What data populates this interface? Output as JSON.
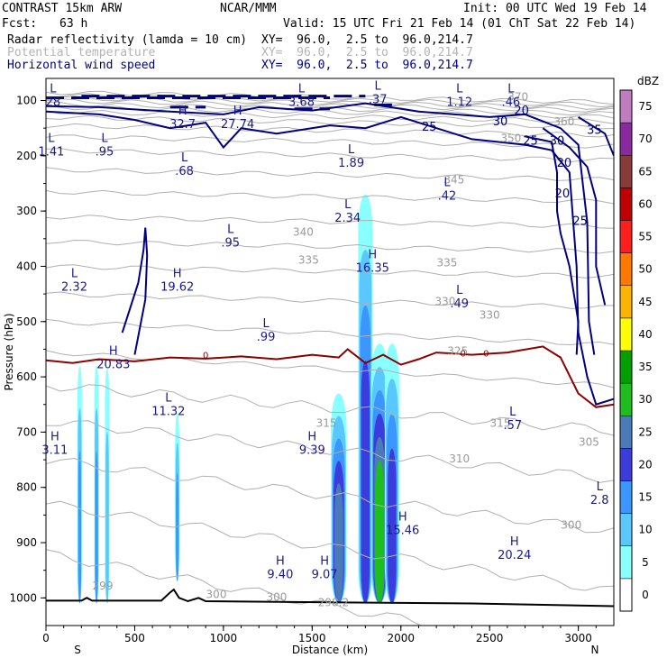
{
  "header": {
    "title_left": "CONTRAST 15km ARW",
    "org": "NCAR/MMM",
    "init": "Init: 00 UTC Wed 19 Feb 14",
    "fcst_label": "Fcst:",
    "fcst_value": "63 h",
    "valid": "Valid: 15 UTC Fri 21 Feb 14 (01 ChT Sat 22 Feb 14)",
    "fields": [
      {
        "name": "Radar reflectivity (lamda = 10 cm)",
        "xy": "XY=  96.0,  2.5 to  96.0,214.7",
        "color": "#000000"
      },
      {
        "name": "Potential temperature",
        "xy": "XY=  96.0,  2.5 to  96.0,214.7",
        "color": "#b4b4b4"
      },
      {
        "name": "Horizontal wind speed",
        "xy": "XY=  96.0,  2.5 to  96.0,214.7",
        "color": "#000080"
      }
    ]
  },
  "chart_data": {
    "type": "cross-section",
    "xlabel": "Distance (km)",
    "ylabel": "Pressure (hPa)",
    "xlim": [
      0,
      3200
    ],
    "ylim": [
      1050,
      60
    ],
    "x_ticks": [
      0,
      500,
      1000,
      1500,
      2000,
      2500,
      3000
    ],
    "y_ticks": [
      100,
      200,
      300,
      400,
      500,
      600,
      700,
      800,
      900,
      1000
    ],
    "x_end_labels": {
      "left": "S",
      "right": "N"
    },
    "colorbar": {
      "unit": "dBZ",
      "levels": [
        "0",
        "5",
        "10",
        "15",
        "20",
        "25",
        "30",
        "35",
        "40",
        "45",
        "50",
        "55",
        "60",
        "65",
        "70",
        "75"
      ],
      "colors": [
        "#ffffff",
        "#8affff",
        "#5ac8ff",
        "#3c96ff",
        "#3c3cdc",
        "#4a7ab8",
        "#1ebe1e",
        "#00a000",
        "#ffff00",
        "#ffb400",
        "#ff7800",
        "#ff1e1e",
        "#c00000",
        "#8b3a3a",
        "#8a2aa0",
        "#c07cc0"
      ]
    },
    "reflectivity_cells": [
      {
        "x": 190,
        "p_top": 580,
        "p_bot": 1000,
        "max_level": 3
      },
      {
        "x": 285,
        "p_top": 580,
        "p_bot": 1000,
        "max_level": 3
      },
      {
        "x": 345,
        "p_top": 585,
        "p_bot": 1000,
        "max_level": 2
      },
      {
        "x": 740,
        "p_top": 665,
        "p_bot": 960,
        "max_level": 3
      },
      {
        "x": 1650,
        "p_top": 630,
        "p_bot": 1000,
        "max_level": 5
      },
      {
        "x": 1800,
        "p_top": 270,
        "p_bot": 1000,
        "max_level": 4
      },
      {
        "x": 1880,
        "p_top": 540,
        "p_bot": 1000,
        "max_level": 6
      },
      {
        "x": 1950,
        "p_top": 540,
        "p_bot": 1000,
        "max_level": 4
      }
    ],
    "theta_labels": [
      {
        "text": "370",
        "x": 2660,
        "p": 100
      },
      {
        "text": "360",
        "x": 2920,
        "p": 145
      },
      {
        "text": "350",
        "x": 2620,
        "p": 175
      },
      {
        "text": "345",
        "x": 2300,
        "p": 250
      },
      {
        "text": "340",
        "x": 1450,
        "p": 345
      },
      {
        "text": "335",
        "x": 1480,
        "p": 395
      },
      {
        "text": "335",
        "x": 2260,
        "p": 400
      },
      {
        "text": "330",
        "x": 2250,
        "p": 470
      },
      {
        "text": "330",
        "x": 2500,
        "p": 495
      },
      {
        "text": "325",
        "x": 2320,
        "p": 560
      },
      {
        "text": "315",
        "x": 1580,
        "p": 690
      },
      {
        "text": "315",
        "x": 2560,
        "p": 690
      },
      {
        "text": "310",
        "x": 2330,
        "p": 755
      },
      {
        "text": "305",
        "x": 3060,
        "p": 725
      },
      {
        "text": "300",
        "x": 2960,
        "p": 875
      },
      {
        "text": "300",
        "x": 1300,
        "p": 1005
      },
      {
        "text": "300",
        "x": 960,
        "p": 1000
      },
      {
        "text": "299",
        "x": 320,
        "p": 985
      },
      {
        "text": "298.2",
        "x": 1620,
        "p": 1015
      }
    ],
    "wind_labels": [
      {
        "text": "20",
        "x": 2680,
        "p": 125
      },
      {
        "text": "30",
        "x": 2560,
        "p": 145
      },
      {
        "text": "25",
        "x": 2160,
        "p": 155
      },
      {
        "text": "25",
        "x": 2730,
        "p": 180
      },
      {
        "text": "30",
        "x": 2880,
        "p": 180
      },
      {
        "text": "35",
        "x": 3090,
        "p": 160
      },
      {
        "text": "20",
        "x": 2920,
        "p": 220
      },
      {
        "text": "20",
        "x": 2910,
        "p": 275
      },
      {
        "text": "25",
        "x": 3010,
        "p": 325
      }
    ],
    "freezing_label": "0",
    "extrema": [
      {
        "kind": "L",
        "value": "28",
        "x": 40,
        "p": 85
      },
      {
        "kind": "L",
        "value": "1.41",
        "x": 30,
        "p": 175
      },
      {
        "kind": "L",
        "value": ".95",
        "x": 330,
        "p": 175
      },
      {
        "kind": "H",
        "value": "32.7",
        "x": 770,
        "p": 125
      },
      {
        "kind": "H",
        "value": "27.74",
        "x": 1080,
        "p": 125
      },
      {
        "kind": "L",
        "value": "3.68",
        "x": 1440,
        "p": 85
      },
      {
        "kind": "L",
        "value": ".37",
        "x": 1870,
        "p": 80
      },
      {
        "kind": "L",
        "value": "1.12",
        "x": 2330,
        "p": 85
      },
      {
        "kind": "L",
        "value": ".46",
        "x": 2620,
        "p": 85
      },
      {
        "kind": "L",
        "value": ".68",
        "x": 780,
        "p": 210
      },
      {
        "kind": "L",
        "value": "1.89",
        "x": 1720,
        "p": 195
      },
      {
        "kind": "L",
        "value": ".42",
        "x": 2260,
        "p": 255
      },
      {
        "kind": "L",
        "value": "2.34",
        "x": 1700,
        "p": 295
      },
      {
        "kind": "L",
        "value": ".95",
        "x": 1040,
        "p": 340
      },
      {
        "kind": "L",
        "value": "2.32",
        "x": 160,
        "p": 420
      },
      {
        "kind": "H",
        "value": "19.62",
        "x": 740,
        "p": 420
      },
      {
        "kind": "H",
        "value": "16.35",
        "x": 1840,
        "p": 385
      },
      {
        "kind": "L",
        "value": ".49",
        "x": 2330,
        "p": 450
      },
      {
        "kind": "L",
        "value": ".99",
        "x": 1240,
        "p": 510
      },
      {
        "kind": "H",
        "value": "20.83",
        "x": 380,
        "p": 560
      },
      {
        "kind": "L",
        "value": "11.32",
        "x": 690,
        "p": 645
      },
      {
        "kind": "L",
        "value": ".57",
        "x": 2630,
        "p": 670
      },
      {
        "kind": "H",
        "value": "3.11",
        "x": 50,
        "p": 715
      },
      {
        "kind": "H",
        "value": "9.39",
        "x": 1500,
        "p": 715
      },
      {
        "kind": "L",
        "value": "2.8",
        "x": 3120,
        "p": 805
      },
      {
        "kind": "H",
        "value": "15.46",
        "x": 2010,
        "p": 860
      },
      {
        "kind": "H",
        "value": "20.24",
        "x": 2640,
        "p": 905
      },
      {
        "kind": "H",
        "value": "9.40",
        "x": 1320,
        "p": 940
      },
      {
        "kind": "H",
        "value": "9.07",
        "x": 1570,
        "p": 940
      }
    ]
  }
}
